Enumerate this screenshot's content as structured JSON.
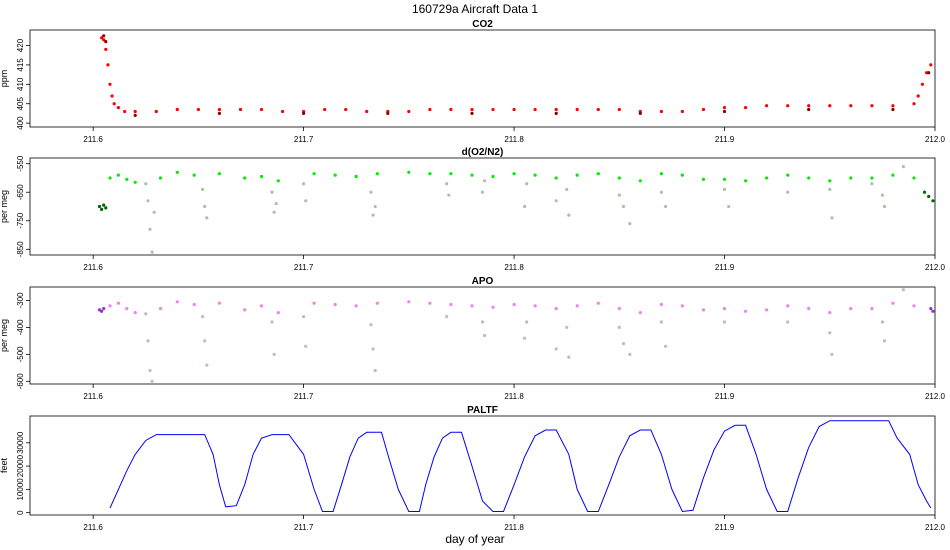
{
  "title": "160729a   Aircraft Data 1",
  "xlabel": "day of year",
  "chart_data": [
    {
      "type": "scatter",
      "title": "CO2",
      "ylabel": "ppm",
      "xlim": [
        211.57,
        212.0
      ],
      "ylim": [
        399,
        424
      ],
      "xticks": [
        211.6,
        211.7,
        211.8,
        211.9,
        212.0
      ],
      "xtick_labels": [
        "211.6",
        "211.7",
        "211.8",
        "211.9",
        "212.0"
      ],
      "yticks": [
        400,
        405,
        410,
        415,
        420
      ],
      "ytick_labels": [
        "400",
        "405",
        "410",
        "415",
        "420"
      ],
      "grid": false,
      "series": [
        {
          "color": "#ff0000",
          "x": [
            211.604,
            211.605,
            211.606,
            211.607,
            211.608,
            211.609,
            211.61,
            211.612,
            211.615,
            211.62,
            211.63,
            211.64,
            211.65,
            211.66,
            211.67,
            211.68,
            211.69,
            211.7,
            211.71,
            211.72,
            211.73,
            211.74,
            211.75,
            211.76,
            211.77,
            211.78,
            211.79,
            211.8,
            211.81,
            211.82,
            211.83,
            211.84,
            211.85,
            211.86,
            211.87,
            211.88,
            211.89,
            211.9,
            211.91,
            211.92,
            211.93,
            211.94,
            211.95,
            211.96,
            211.97,
            211.98,
            211.99,
            211.992,
            211.994,
            211.996,
            211.998
          ],
          "y": [
            422,
            421.5,
            419,
            415,
            410,
            407,
            405,
            404,
            403,
            403,
            403,
            403.5,
            403.5,
            403.5,
            403.5,
            403.5,
            403,
            403,
            403.5,
            403.5,
            403,
            403,
            403,
            403.5,
            403.5,
            403.5,
            403.5,
            403.5,
            403.5,
            403.5,
            403.5,
            403.5,
            403.5,
            403,
            403,
            403,
            403.5,
            404,
            404,
            404.5,
            404.5,
            404.5,
            404.5,
            404.5,
            404.5,
            404.5,
            405,
            407,
            410,
            413,
            415
          ]
        },
        {
          "color": "#8b0000",
          "x": [
            211.605,
            211.606,
            211.62,
            211.66,
            211.7,
            211.74,
            211.78,
            211.82,
            211.86,
            211.9,
            211.94,
            211.98,
            211.997
          ],
          "y": [
            422.5,
            421,
            402,
            402.5,
            402.5,
            402.5,
            402.5,
            402.5,
            402.5,
            403,
            403.5,
            403.5,
            413
          ]
        }
      ]
    },
    {
      "type": "scatter",
      "title": "d(O2/N2)",
      "ylabel": "per meg",
      "xlim": [
        211.57,
        212.0
      ],
      "ylim": [
        -870,
        -530
      ],
      "xticks": [
        211.6,
        211.7,
        211.8,
        211.9,
        212.0
      ],
      "xtick_labels": [
        "211.6",
        "211.7",
        "211.8",
        "211.9",
        "212.0"
      ],
      "yticks": [
        -850,
        -750,
        -650,
        -550
      ],
      "ytick_labels": [
        "-850",
        "-750",
        "-650",
        "-550"
      ],
      "grid": false,
      "series": [
        {
          "color": "#00ee00",
          "x": [
            211.608,
            211.612,
            211.616,
            211.62,
            211.632,
            211.64,
            211.648,
            211.66,
            211.672,
            211.68,
            211.688,
            211.705,
            211.715,
            211.725,
            211.735,
            211.75,
            211.76,
            211.77,
            211.78,
            211.79,
            211.8,
            211.81,
            211.82,
            211.83,
            211.84,
            211.85,
            211.86,
            211.87,
            211.88,
            211.89,
            211.9,
            211.91,
            211.92,
            211.93,
            211.94,
            211.95,
            211.96,
            211.97,
            211.98,
            211.99
          ],
          "y": [
            -600,
            -590,
            -605,
            -615,
            -600,
            -580,
            -590,
            -585,
            -600,
            -595,
            -610,
            -585,
            -590,
            -595,
            -585,
            -580,
            -585,
            -585,
            -590,
            -595,
            -585,
            -590,
            -600,
            -590,
            -585,
            -600,
            -610,
            -585,
            -590,
            -605,
            -605,
            -610,
            -600,
            -590,
            -600,
            -610,
            -600,
            -600,
            -590,
            -600
          ]
        },
        {
          "color": "#006400",
          "x": [
            211.603,
            211.604,
            211.605,
            211.606,
            211.995,
            211.997,
            211.999
          ],
          "y": [
            -700,
            -710,
            -695,
            -705,
            -650,
            -665,
            -680
          ]
        },
        {
          "color": "#a8c4a8",
          "x": [
            211.625,
            211.626,
            211.627,
            211.628,
            211.629,
            211.652,
            211.653,
            211.654,
            211.685,
            211.686,
            211.687,
            211.7,
            211.701,
            211.732,
            211.733,
            211.734,
            211.768,
            211.769,
            211.785,
            211.786,
            211.805,
            211.806,
            211.82,
            211.825,
            211.826,
            211.85,
            211.852,
            211.855,
            211.87,
            211.872,
            211.9,
            211.902,
            211.93,
            211.95,
            211.951,
            211.97,
            211.975,
            211.976,
            211.985
          ],
          "y": [
            -620,
            -680,
            -780,
            -860,
            -720,
            -640,
            -700,
            -740,
            -650,
            -720,
            -690,
            -620,
            -680,
            -650,
            -730,
            -700,
            -620,
            -660,
            -650,
            -610,
            -700,
            -620,
            -680,
            -640,
            -730,
            -660,
            -700,
            -760,
            -650,
            -700,
            -640,
            -700,
            -650,
            -640,
            -740,
            -620,
            -660,
            -700,
            -560
          ]
        }
      ]
    },
    {
      "type": "scatter",
      "title": "APO",
      "ylabel": "per meg",
      "xlim": [
        211.57,
        212.0
      ],
      "ylim": [
        -610,
        -250
      ],
      "xticks": [
        211.6,
        211.7,
        211.8,
        211.9,
        212.0
      ],
      "xtick_labels": [
        "211.6",
        "211.7",
        "211.8",
        "211.9",
        "212.0"
      ],
      "yticks": [
        -600,
        -500,
        -400,
        -300
      ],
      "ytick_labels": [
        "-600",
        "-500",
        "-400",
        "-300"
      ],
      "grid": false,
      "series": [
        {
          "color": "#ee82ee",
          "x": [
            211.608,
            211.612,
            211.616,
            211.62,
            211.632,
            211.64,
            211.648,
            211.66,
            211.672,
            211.68,
            211.688,
            211.705,
            211.715,
            211.725,
            211.735,
            211.75,
            211.76,
            211.77,
            211.78,
            211.79,
            211.8,
            211.81,
            211.82,
            211.83,
            211.84,
            211.85,
            211.86,
            211.87,
            211.88,
            211.89,
            211.9,
            211.91,
            211.92,
            211.93,
            211.94,
            211.95,
            211.96,
            211.97,
            211.98,
            211.99
          ],
          "y": [
            -320,
            -310,
            -330,
            -345,
            -330,
            -305,
            -315,
            -310,
            -335,
            -320,
            -345,
            -310,
            -315,
            -320,
            -310,
            -305,
            -310,
            -315,
            -320,
            -325,
            -315,
            -320,
            -330,
            -320,
            -310,
            -330,
            -345,
            -315,
            -320,
            -335,
            -330,
            -340,
            -335,
            -320,
            -330,
            -345,
            -330,
            -330,
            -310,
            -320
          ]
        },
        {
          "color": "#9932cc",
          "x": [
            211.603,
            211.604,
            211.605,
            211.998,
            211.999
          ],
          "y": [
            -335,
            -340,
            -330,
            -330,
            -340
          ]
        },
        {
          "color": "#c8b4cc",
          "x": [
            211.625,
            211.626,
            211.627,
            211.628,
            211.652,
            211.653,
            211.654,
            211.685,
            211.686,
            211.7,
            211.701,
            211.732,
            211.733,
            211.734,
            211.768,
            211.785,
            211.786,
            211.805,
            211.806,
            211.82,
            211.825,
            211.826,
            211.85,
            211.852,
            211.855,
            211.87,
            211.872,
            211.9,
            211.93,
            211.95,
            211.951,
            211.975,
            211.976,
            211.985
          ],
          "y": [
            -350,
            -450,
            -560,
            -600,
            -360,
            -450,
            -540,
            -380,
            -500,
            -360,
            -470,
            -390,
            -480,
            -560,
            -360,
            -380,
            -430,
            -440,
            -380,
            -480,
            -400,
            -510,
            -400,
            -460,
            -500,
            -380,
            -470,
            -380,
            -380,
            -420,
            -500,
            -380,
            -450,
            -260
          ]
        }
      ]
    },
    {
      "type": "line",
      "title": "PALTF",
      "ylabel": "feet",
      "xlim": [
        211.57,
        212.0
      ],
      "ylim": [
        -1000,
        41500
      ],
      "xticks": [
        211.6,
        211.7,
        211.8,
        211.9,
        212.0
      ],
      "xtick_labels": [
        "211.6",
        "211.7",
        "211.8",
        "211.9",
        "212.0"
      ],
      "yticks": [
        0,
        10000,
        20000,
        30000
      ],
      "ytick_labels": [
        "0",
        "10000",
        "20000",
        "30000"
      ],
      "grid": false,
      "series": [
        {
          "color": "#0000ff",
          "x": [
            211.608,
            211.612,
            211.616,
            211.62,
            211.625,
            211.63,
            211.635,
            211.653,
            211.657,
            211.66,
            211.663,
            211.668,
            211.672,
            211.676,
            211.68,
            211.685,
            211.693,
            211.7,
            211.705,
            211.709,
            211.714,
            211.718,
            211.722,
            211.726,
            211.73,
            211.737,
            211.74,
            211.745,
            211.75,
            211.755,
            211.758,
            211.762,
            211.766,
            211.77,
            211.775,
            211.78,
            211.785,
            211.79,
            211.795,
            211.8,
            211.805,
            211.81,
            211.815,
            211.82,
            211.826,
            211.83,
            211.835,
            211.84,
            211.845,
            211.85,
            211.855,
            211.86,
            211.865,
            211.87,
            211.875,
            211.88,
            211.885,
            211.89,
            211.895,
            211.9,
            211.905,
            211.91,
            211.915,
            211.92,
            211.925,
            211.93,
            211.935,
            211.94,
            211.945,
            211.95,
            211.955,
            211.96,
            211.965,
            211.97,
            211.975,
            211.978,
            211.982,
            211.988,
            211.992,
            211.996,
            211.998
          ],
          "y": [
            2000,
            10000,
            18000,
            25000,
            31000,
            33500,
            33500,
            33500,
            25000,
            12000,
            2500,
            3000,
            12000,
            25000,
            32000,
            33500,
            33500,
            25000,
            10000,
            500,
            500,
            12000,
            24000,
            32000,
            34500,
            34500,
            25000,
            10000,
            500,
            500,
            12000,
            24000,
            32000,
            34500,
            34500,
            20000,
            5000,
            500,
            500,
            12000,
            24000,
            33000,
            35500,
            35500,
            25000,
            10000,
            500,
            500,
            12000,
            24000,
            33000,
            35500,
            35500,
            25000,
            10000,
            500,
            1000,
            15000,
            27000,
            35000,
            37500,
            37500,
            25000,
            10000,
            500,
            500,
            15000,
            28000,
            37000,
            39500,
            39500,
            39500,
            39500,
            39500,
            39500,
            39500,
            32000,
            25000,
            12000,
            5000,
            2000
          ]
        }
      ]
    }
  ]
}
